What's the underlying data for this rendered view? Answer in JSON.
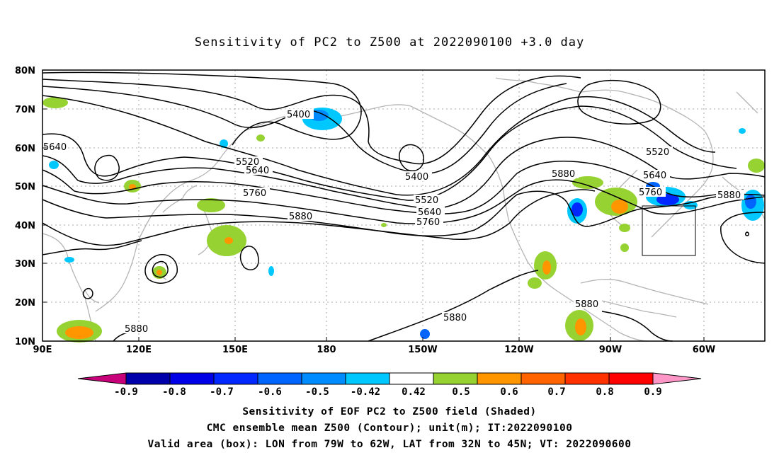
{
  "title": "Sensitivity of PC2 to Z500 at 2022090100 +3.0 day",
  "lat_ticks": [
    "80N",
    "70N",
    "60N",
    "50N",
    "40N",
    "30N",
    "20N",
    "10N"
  ],
  "lon_ticks": [
    "90E",
    "120E",
    "150E",
    "180",
    "150W",
    "120W",
    "90W",
    "60W"
  ],
  "contour_labels": [
    "5400",
    "5400",
    "5520",
    "5520",
    "5520",
    "5640",
    "5640",
    "5640",
    "5760",
    "5760",
    "5760",
    "5880",
    "5880",
    "5880",
    "5880",
    "5880",
    "5880",
    "5640"
  ],
  "colorbar": {
    "labels": [
      "-0.9",
      "-0.8",
      "-0.7",
      "-0.6",
      "-0.5",
      "-0.42",
      "0.42",
      "0.5",
      "0.6",
      "0.7",
      "0.8",
      "0.9"
    ],
    "colors": [
      "#c8007a",
      "#0000aa",
      "#0000e6",
      "#0028ff",
      "#0064ff",
      "#008cff",
      "#00c8ff",
      "#ffffff",
      "#96d232",
      "#ff9600",
      "#ff6400",
      "#ff3200",
      "#ff0000",
      "#ff96c8"
    ]
  },
  "valid_box": {
    "lon_range": [
      "79W",
      "62W"
    ],
    "lat_range": [
      "32N",
      "45N"
    ]
  },
  "captions": [
    "Sensitivity of EOF PC2 to Z500 field (Shaded)",
    "CMC ensemble mean Z500 (Contour); unit(m); IT:2022090100",
    "Valid area (box): LON from 79W to 62W, LAT from 32N to 45N; VT: 2022090600"
  ]
}
